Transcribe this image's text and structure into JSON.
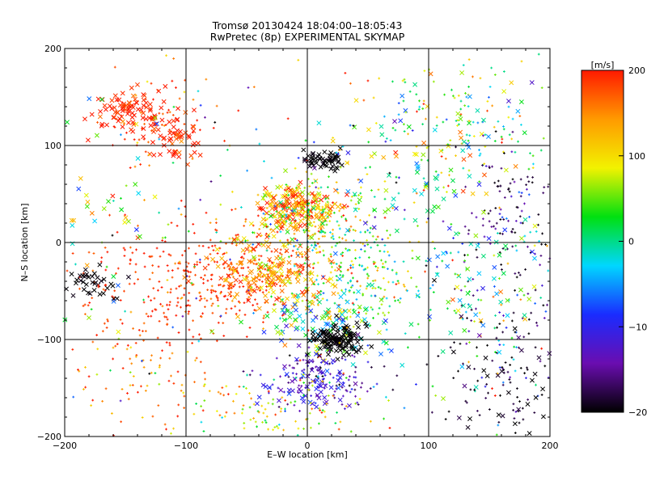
{
  "chart_data": {
    "type": "scatter",
    "title": "Tromsø 20130424 18:04:00–18:05:43",
    "subtitle": "RwPretec (8p) EXPERIMENTAL SKYMAP",
    "xlabel": "E–W location [km]",
    "ylabel": "N–S location [km]",
    "xlim": [
      -200,
      200
    ],
    "ylim": [
      -200,
      200
    ],
    "xticks": [
      "−200",
      "−100",
      "0",
      "100",
      "200"
    ],
    "yticks": [
      "−200",
      "−100",
      "0",
      "100",
      "200"
    ],
    "grid": true,
    "markers": [
      "x",
      "+"
    ],
    "colorbar": {
      "label": "[m/s]",
      "range": [
        -200,
        200
      ],
      "ticks": [
        "200",
        "100",
        "0",
        "−100",
        "−200"
      ],
      "colormap": "rainbow: black-purple-blue-cyan-green-yellow-orange-red",
      "colors": [
        "#000000",
        "#6a0db0",
        "#1a2cff",
        "#00d7ff",
        "#00e010",
        "#f2f200",
        "#ff9a00",
        "#ff1a00"
      ]
    },
    "clusters": [
      {
        "x": -150,
        "y": 135,
        "sx": 15,
        "sy": 12,
        "n": 95,
        "v": 200,
        "dv": 20,
        "marker": "x"
      },
      {
        "x": -110,
        "y": 110,
        "sx": 10,
        "sy": 15,
        "n": 55,
        "v": 195,
        "dv": 20,
        "marker": "x"
      },
      {
        "x": -130,
        "y": 125,
        "sx": 25,
        "sy": 25,
        "n": 60,
        "v": 185,
        "dv": 30,
        "marker": "+"
      },
      {
        "x": 15,
        "y": 85,
        "sx": 10,
        "sy": 5,
        "n": 55,
        "v": -200,
        "dv": 5,
        "marker": "x"
      },
      {
        "x": -10,
        "y": 35,
        "sx": 15,
        "sy": 12,
        "n": 190,
        "v": 130,
        "dv": 60,
        "marker": "x"
      },
      {
        "x": 0,
        "y": 20,
        "sx": 30,
        "sy": 22,
        "n": 240,
        "v": 80,
        "dv": 70,
        "marker": "+"
      },
      {
        "x": -60,
        "y": -40,
        "sx": 35,
        "sy": 25,
        "n": 260,
        "v": 190,
        "dv": 25,
        "marker": "+"
      },
      {
        "x": -130,
        "y": -50,
        "sx": 35,
        "sy": 30,
        "n": 150,
        "v": 190,
        "dv": 20,
        "marker": "+"
      },
      {
        "x": -30,
        "y": -30,
        "sx": 25,
        "sy": 20,
        "n": 180,
        "v": 150,
        "dv": 40,
        "marker": "x"
      },
      {
        "x": 40,
        "y": -30,
        "sx": 35,
        "sy": 35,
        "n": 260,
        "v": 40,
        "dv": 60,
        "marker": "+"
      },
      {
        "x": 20,
        "y": -80,
        "sx": 25,
        "sy": 20,
        "n": 120,
        "v": 10,
        "dv": 60,
        "marker": "x"
      },
      {
        "x": 25,
        "y": -100,
        "sx": 12,
        "sy": 8,
        "n": 130,
        "v": -200,
        "dv": 5,
        "marker": "x"
      },
      {
        "x": 10,
        "y": -140,
        "sx": 22,
        "sy": 15,
        "n": 120,
        "v": -140,
        "dv": 35,
        "marker": "+"
      },
      {
        "x": 0,
        "y": -145,
        "sx": 18,
        "sy": 15,
        "n": 60,
        "v": -110,
        "dv": 20,
        "marker": "x"
      },
      {
        "x": -20,
        "y": -170,
        "sx": 40,
        "sy": 18,
        "n": 110,
        "v": 80,
        "dv": 60,
        "marker": "+"
      },
      {
        "x": -130,
        "y": -140,
        "sx": 45,
        "sy": 40,
        "n": 90,
        "v": 160,
        "dv": 50,
        "marker": "+"
      },
      {
        "x": 130,
        "y": 130,
        "sx": 40,
        "sy": 35,
        "n": 120,
        "v": 40,
        "dv": 80,
        "marker": "+"
      },
      {
        "x": 130,
        "y": 120,
        "sx": 40,
        "sy": 40,
        "n": 50,
        "v": 20,
        "dv": 90,
        "marker": "x"
      },
      {
        "x": 170,
        "y": 30,
        "sx": 25,
        "sy": 35,
        "n": 110,
        "v": -170,
        "dv": 30,
        "marker": "+"
      },
      {
        "x": 160,
        "y": -60,
        "sx": 30,
        "sy": 50,
        "n": 120,
        "v": -50,
        "dv": 100,
        "marker": "+"
      },
      {
        "x": 140,
        "y": -60,
        "sx": 40,
        "sy": 50,
        "n": 70,
        "v": -10,
        "dv": 80,
        "marker": "x"
      },
      {
        "x": 160,
        "y": -150,
        "sx": 30,
        "sy": 30,
        "n": 80,
        "v": -190,
        "dv": 15,
        "marker": "+"
      },
      {
        "x": 165,
        "y": -150,
        "sx": 25,
        "sy": 30,
        "n": 35,
        "v": -190,
        "dv": 15,
        "marker": "x"
      },
      {
        "x": -180,
        "y": -40,
        "sx": 15,
        "sy": 10,
        "n": 40,
        "v": -200,
        "dv": 5,
        "marker": "x"
      },
      {
        "x": -170,
        "y": 30,
        "sx": 25,
        "sy": 60,
        "n": 40,
        "v": 40,
        "dv": 80,
        "marker": "x"
      },
      {
        "x": 80,
        "y": 60,
        "sx": 40,
        "sy": 40,
        "n": 60,
        "v": 10,
        "dv": 80,
        "marker": "x"
      },
      {
        "x": 0,
        "y": 0,
        "sx": 120,
        "sy": 110,
        "n": 260,
        "v": 50,
        "dv": 140,
        "marker": "+"
      }
    ]
  }
}
